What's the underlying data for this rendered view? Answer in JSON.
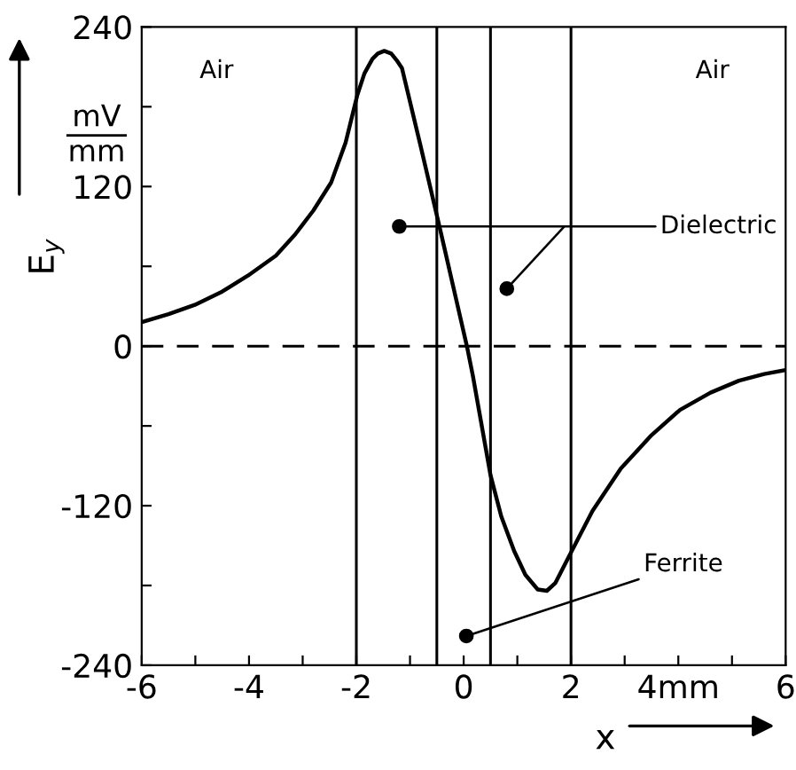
{
  "chart_data": {
    "type": "line",
    "xlabel": "x",
    "ylabel": "E$_{y}$",
    "x": [
      -6,
      -5.5,
      -5.01,
      -4.5,
      -4.02,
      -3.5,
      -3.14,
      -2.8,
      -2.47,
      -2.2,
      -1.98,
      -1.85,
      -1.7,
      -1.6,
      -1.48,
      -1.35,
      -1.25,
      -1.15,
      -0.8,
      -0.44,
      0.06,
      0.17,
      0.5,
      0.7,
      0.94,
      1.15,
      1.38,
      1.55,
      1.71,
      1.99,
      2.4,
      2.93,
      3.5,
      4.03,
      4.6,
      5.13,
      5.6,
      6
    ],
    "series": [
      {
        "color": "#000000",
        "values": [
          18,
          24,
          31,
          41,
          53,
          68,
          84,
          102,
          123,
          153,
          189,
          205,
          216,
          220,
          222,
          220,
          215,
          209,
          150,
          88,
          0,
          -22,
          -97,
          -128,
          -154,
          -172,
          -183,
          -184,
          -178,
          -156,
          -124,
          -92,
          -67,
          -48,
          -35,
          -26,
          -21,
          -18
        ]
      }
    ],
    "xlim": [
      -6,
      6
    ],
    "ylim": [
      -240,
      240
    ],
    "xticks": [
      -6,
      {
        "value": -5,
        "label": null
      },
      -4,
      {
        "value": -3,
        "label": null
      },
      -2,
      {
        "value": -1,
        "label": null
      },
      0,
      {
        "value": 1,
        "label": null
      },
      2,
      {
        "value": 3,
        "label": null
      },
      {
        "value": 4,
        "label": "4mm"
      },
      {
        "value": 5,
        "label": null
      },
      6
    ],
    "yticks": [
      -240,
      {
        "value": -180,
        "label": null
      },
      -120,
      {
        "value": -60,
        "label": null
      },
      0,
      {
        "value": 60,
        "label": null
      },
      120,
      {
        "value": 180,
        "label": null
      },
      240
    ],
    "ref_lines": [
      {
        "axis": "y",
        "value": 0,
        "line_style": "dashed",
        "color": "#000000"
      },
      {
        "axis": "x",
        "value": -2,
        "color": "#000000"
      },
      {
        "axis": "x",
        "value": -0.5,
        "color": "#000000"
      },
      {
        "axis": "x",
        "value": 0.5,
        "color": "#000000"
      },
      {
        "axis": "x",
        "value": 2,
        "color": "#000000"
      }
    ],
    "annotations": [
      "mV",
      "mm",
      "Air",
      "Air",
      {
        "text": "Dielectric",
        "x": -1.2,
        "y": 90
      },
      {
        "text": "Ferrite",
        "x": 0.05,
        "y": -218
      }
    ],
    "grid": false,
    "legend": false,
    "marker": "none",
    "line_style": "solid"
  }
}
